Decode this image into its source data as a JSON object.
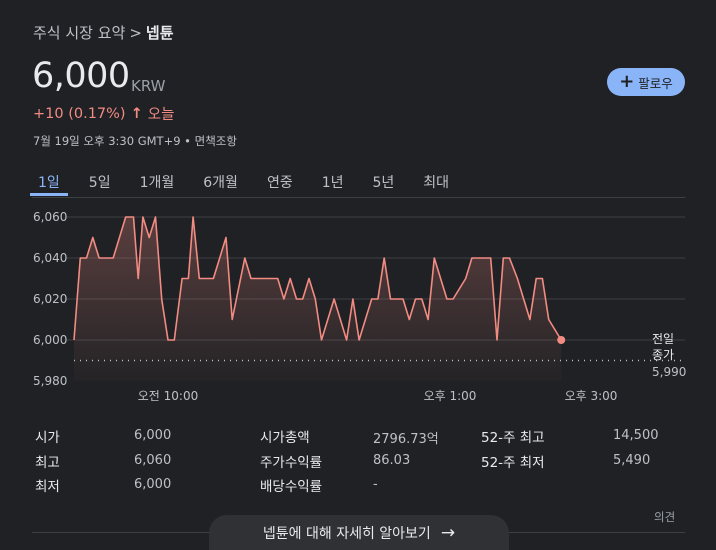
{
  "breadcrumb": {
    "parent": "주식 시장 요약",
    "separator": ">",
    "current": "넵튠"
  },
  "quote": {
    "price": "6,000",
    "currency": "KRW",
    "change": "+10 (0.17%)",
    "change_arrow": "↑",
    "change_period": "오늘",
    "timestamp": "7월 19일 오후 3:30 GMT+9 • 면책조항"
  },
  "follow_button": {
    "icon": "plus-icon",
    "label": "팔로우"
  },
  "tabs": [
    {
      "label": "1일",
      "active": true
    },
    {
      "label": "5일",
      "active": false
    },
    {
      "label": "1개월",
      "active": false
    },
    {
      "label": "6개월",
      "active": false
    },
    {
      "label": "연중",
      "active": false
    },
    {
      "label": "1년",
      "active": false
    },
    {
      "label": "5년",
      "active": false
    },
    {
      "label": "최대",
      "active": false
    }
  ],
  "colors": {
    "line": "#f28b82",
    "accent": "#8ab4f8",
    "background": "#202124"
  },
  "chart_data": {
    "type": "area",
    "y_ticks": [
      5980,
      6000,
      6020,
      6040,
      6060
    ],
    "y_tick_labels": [
      "5,980",
      "6,000",
      "6,020",
      "6,040",
      "6,060"
    ],
    "ylim": [
      5980,
      6060
    ],
    "x_ticks": [
      {
        "t": 60,
        "label": "오전 10:00"
      },
      {
        "t": 240,
        "label": "오후 1:00"
      },
      {
        "t": 330,
        "label": "오후 3:00"
      }
    ],
    "xlim": [
      0,
      390
    ],
    "previous_close": {
      "value": 5990,
      "label_line1": "전일",
      "label_line2": "종가",
      "value_label": "5,990"
    },
    "grid": true,
    "points": [
      [
        0,
        6000
      ],
      [
        4,
        6040
      ],
      [
        8,
        6040
      ],
      [
        12,
        6050
      ],
      [
        16,
        6040
      ],
      [
        21,
        6040
      ],
      [
        25,
        6040
      ],
      [
        33,
        6060
      ],
      [
        38,
        6060
      ],
      [
        41,
        6030
      ],
      [
        44,
        6060
      ],
      [
        48,
        6050
      ],
      [
        52,
        6060
      ],
      [
        56,
        6020
      ],
      [
        60,
        6000
      ],
      [
        64,
        6000
      ],
      [
        69,
        6030
      ],
      [
        73,
        6030
      ],
      [
        76,
        6060
      ],
      [
        80,
        6030
      ],
      [
        84,
        6030
      ],
      [
        89,
        6030
      ],
      [
        97,
        6050
      ],
      [
        101,
        6010
      ],
      [
        109,
        6040
      ],
      [
        113,
        6030
      ],
      [
        117,
        6030
      ],
      [
        126,
        6030
      ],
      [
        130,
        6030
      ],
      [
        134,
        6020
      ],
      [
        138,
        6030
      ],
      [
        142,
        6020
      ],
      [
        146,
        6020
      ],
      [
        150,
        6030
      ],
      [
        154,
        6020
      ],
      [
        158,
        6000
      ],
      [
        166,
        6020
      ],
      [
        174,
        6000
      ],
      [
        178,
        6020
      ],
      [
        182,
        6000
      ],
      [
        190,
        6020
      ],
      [
        194,
        6020
      ],
      [
        198,
        6040
      ],
      [
        202,
        6020
      ],
      [
        206,
        6020
      ],
      [
        210,
        6020
      ],
      [
        214,
        6010
      ],
      [
        218,
        6020
      ],
      [
        222,
        6020
      ],
      [
        226,
        6010
      ],
      [
        230,
        6040
      ],
      [
        238,
        6020
      ],
      [
        242,
        6020
      ],
      [
        250,
        6030
      ],
      [
        254,
        6040
      ],
      [
        262,
        6040
      ],
      [
        266,
        6040
      ],
      [
        270,
        6000
      ],
      [
        274,
        6040
      ],
      [
        278,
        6040
      ],
      [
        283,
        6030
      ],
      [
        291,
        6010
      ],
      [
        295,
        6030
      ],
      [
        299,
        6030
      ],
      [
        303,
        6010
      ],
      [
        311,
        6000
      ]
    ]
  },
  "stats": [
    {
      "label": "시가",
      "value": "6,000"
    },
    {
      "label": "최고",
      "value": "6,060"
    },
    {
      "label": "최저",
      "value": "6,000"
    },
    {
      "label": "시가총액",
      "value": "2796.73억"
    },
    {
      "label": "주가수익률",
      "value": "86.03"
    },
    {
      "label": "배당수익률",
      "value": "-"
    },
    {
      "label": "52-주 최고",
      "value": "14,500"
    },
    {
      "label": "52-주 최저",
      "value": "5,490"
    }
  ],
  "feedback_label": "의견",
  "more_button": {
    "label": "넵튠에 대해 자세히 알아보기",
    "icon": "arrow-right-icon"
  }
}
